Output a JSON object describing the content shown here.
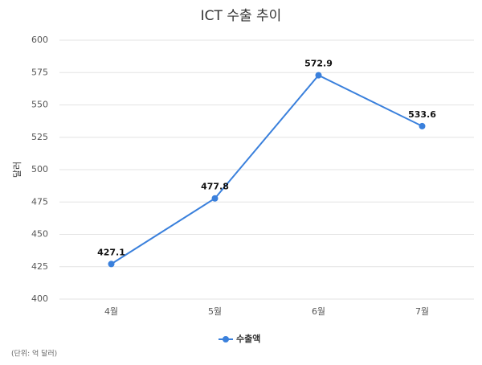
{
  "chart_data": {
    "type": "line",
    "title": "ICT 수출 추이",
    "y_label": "달러",
    "categories": [
      "4월",
      "5월",
      "6월",
      "7월"
    ],
    "series": [
      {
        "name": "수출액",
        "color": "#3a80dc",
        "values": [
          427.1,
          477.8,
          572.9,
          533.6
        ]
      }
    ],
    "ylim": [
      400,
      600
    ],
    "yticks": [
      400,
      425,
      450,
      475,
      500,
      525,
      550,
      575,
      600
    ],
    "grid": true,
    "legend": "bottom",
    "note": "(단위: 억 달러)"
  }
}
